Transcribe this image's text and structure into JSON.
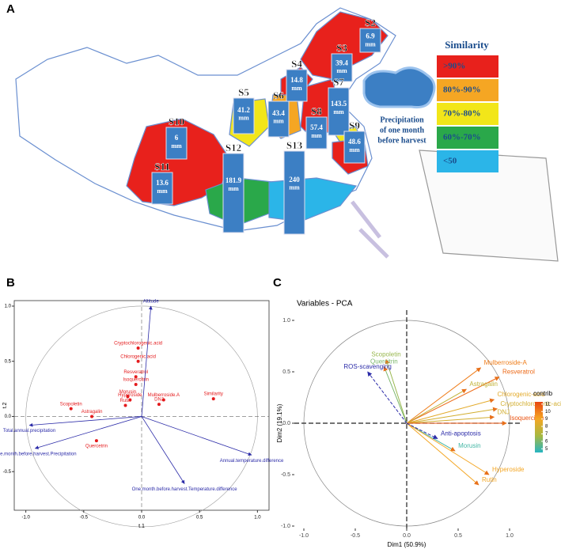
{
  "panels": [
    "A",
    "B",
    "C"
  ],
  "map": {
    "stations": [
      {
        "label": "S2",
        "precipitation": 6.9
      },
      {
        "label": "S3",
        "precipitation": 39.4
      },
      {
        "label": "S4",
        "precipitation": 14.8
      },
      {
        "label": "S5",
        "precipitation": 41.2
      },
      {
        "label": "S6",
        "precipitation": 43.4
      },
      {
        "label": "S7",
        "precipitation": 143.5
      },
      {
        "label": "S8",
        "precipitation": 57.4
      },
      {
        "label": "S9",
        "precipitation": 48.6
      },
      {
        "label": "S10",
        "precipitation": 6
      },
      {
        "label": "S11",
        "precipitation": 13.6
      },
      {
        "label": "S12",
        "precipitation": 181.9
      },
      {
        "label": "S13",
        "precipitation": 240
      }
    ],
    "unit": "mm",
    "cloud_text": [
      "Precipitation",
      "of one month",
      "before harvest"
    ],
    "legend": {
      "title": "Similarity",
      "items": [
        {
          "label": ">90%",
          "color": "#e8211c"
        },
        {
          "label": "80%-90%",
          "color": "#f5a623"
        },
        {
          "label": "70%-80%",
          "color": "#f2e619"
        },
        {
          "label": "60%-70%",
          "color": "#2aa84a"
        },
        {
          "label": "<50",
          "color": "#2bb5e8"
        }
      ]
    }
  },
  "chart_data": [
    {
      "type": "biplot",
      "xlabel": "t.1",
      "ylabel": "t.2",
      "xlim": [
        -1.1,
        1.1
      ],
      "ylim": [
        -0.85,
        1.05
      ],
      "xticks": [
        {
          "value": -1,
          "label": "-1.0"
        },
        -0.5,
        {
          "value": 0,
          "label": "0.0"
        },
        0.5,
        {
          "value": 1,
          "label": "1.0"
        }
      ],
      "yticks": [
        -0.5,
        {
          "value": 0,
          "label": "0.0"
        },
        0.5,
        {
          "value": 1,
          "label": "1.0"
        }
      ],
      "series": [
        {
          "color": "#e41a1c",
          "arrows": false,
          "labels": [
            "Cryptochlorogenic.acid",
            "Chlorogenic.acid",
            "Resveratrol",
            "Isoquercitrin",
            "Morusin",
            "Hyperoside",
            "Rutin",
            "Mulberroside.A",
            "DNJ",
            "Similarity",
            "Scopoletin",
            "Astragalin",
            "Quercetrin"
          ],
          "x": [
            -0.03,
            -0.03,
            -0.05,
            -0.05,
            -0.12,
            -0.1,
            -0.14,
            0.19,
            0.15,
            0.62,
            -0.61,
            -0.43,
            -0.39
          ],
          "y": [
            0.62,
            0.5,
            0.36,
            0.29,
            0.18,
            0.15,
            0.1,
            0.15,
            0.11,
            0.16,
            0.07,
            0.0,
            -0.22
          ]
        },
        {
          "color": "#2b2ba8",
          "arrows": true,
          "labels": [
            "Altitude",
            "Total.annual.precipitation",
            "One.month.before.harvest.Precipitation",
            "Annual.temperature.difference",
            "One.month.before.harvest.Temperature.difference"
          ],
          "x": [
            0.08,
            -0.97,
            -0.92,
            0.95,
            0.37
          ],
          "y": [
            1.0,
            -0.08,
            -0.29,
            -0.35,
            -0.61
          ]
        }
      ]
    },
    {
      "type": "pca-variables",
      "title": "Variables - PCA",
      "xlabel": "Dim1 (50.9%)",
      "ylabel": "Dim2 (19.1%)",
      "xlim": [
        -1.1,
        1.1
      ],
      "ylim": [
        -1.1,
        1.1
      ],
      "xticks": [
        {
          "value": -1,
          "label": "-1.0"
        },
        -0.5,
        {
          "value": 0,
          "label": "0.0"
        },
        0.5,
        {
          "value": 1,
          "label": "1.0"
        }
      ],
      "yticks": [
        {
          "value": -1,
          "label": "-1.0"
        },
        -0.5,
        {
          "value": 0,
          "label": "0.0"
        },
        0.5,
        {
          "value": 1,
          "label": "1.0"
        }
      ],
      "series": [
        {
          "labels": [
            "Scopoletin",
            "Quercitrin",
            "Mulberroside-A",
            "Resveratrol",
            "Astragalin",
            "Chlorogenic-acid",
            "Cryptochlorogenic-acid",
            "DNJ",
            "Isoquercitrin",
            "Morusin",
            "Hyperoside",
            "Rutin"
          ],
          "x": [
            -0.2,
            -0.22,
            0.72,
            0.9,
            0.58,
            0.85,
            0.88,
            0.85,
            0.97,
            0.47,
            0.8,
            0.7
          ],
          "y": [
            0.62,
            0.55,
            0.54,
            0.45,
            0.33,
            0.23,
            0.14,
            0.06,
            0.0,
            -0.27,
            -0.5,
            -0.6
          ],
          "contrib": [
            6.5,
            6,
            10,
            10.5,
            7.5,
            8.5,
            8,
            8,
            11,
            5,
            9,
            9
          ]
        },
        {
          "color": "#2b2ba8",
          "dashed": true,
          "labels": [
            "ROS-scavenging",
            "Anti-apoptosis"
          ],
          "x": [
            -0.38,
            0.3
          ],
          "y": [
            0.5,
            -0.15
          ]
        }
      ],
      "colorbar": {
        "title": "contrib",
        "clim": [
          4.5,
          11.3
        ],
        "ticks": [
          11,
          10,
          9,
          8,
          7,
          6,
          5
        ],
        "colors": [
          "#26b5c2",
          "#a8b840",
          "#f5a623",
          "#e8470f"
        ]
      }
    }
  ]
}
